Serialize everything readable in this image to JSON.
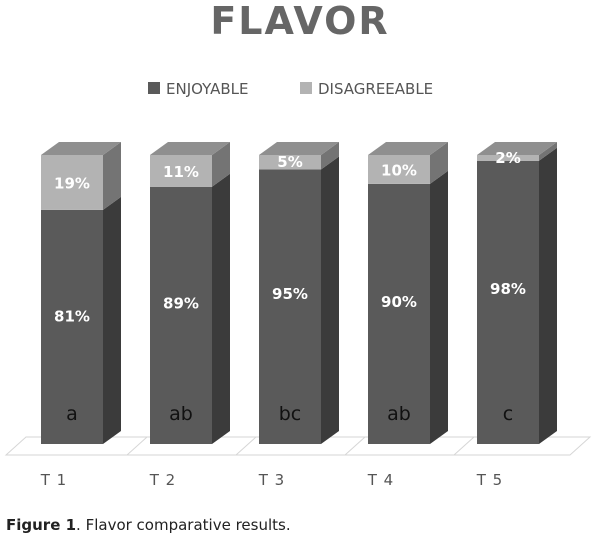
{
  "chart_data": {
    "type": "bar",
    "stacked": true,
    "title": "FLAVOR",
    "categories": [
      "T 1",
      "T 2",
      "T 3",
      "T 4",
      "T 5"
    ],
    "series": [
      {
        "name": "ENJOYABLE",
        "values": [
          81,
          89,
          95,
          90,
          98
        ],
        "color": "#5a5a5a"
      },
      {
        "name": "DISAGREEABLE",
        "values": [
          19,
          11,
          5,
          10,
          2
        ],
        "color": "#b3b3b3"
      }
    ],
    "value_labels": {
      "ENJOYABLE": [
        "81%",
        "89%",
        "95%",
        "90%",
        "98%"
      ],
      "DISAGREEABLE": [
        "19%",
        "11%",
        "5%",
        "10%",
        "2%"
      ]
    },
    "group_letters": [
      "a",
      "ab",
      "bc",
      "ab",
      "c"
    ],
    "ylim": [
      0,
      100
    ],
    "legend_position": "top-center",
    "grid": false,
    "style": "3d"
  },
  "caption": {
    "label": "Figure 1",
    "text": ". Flavor comparative results."
  }
}
